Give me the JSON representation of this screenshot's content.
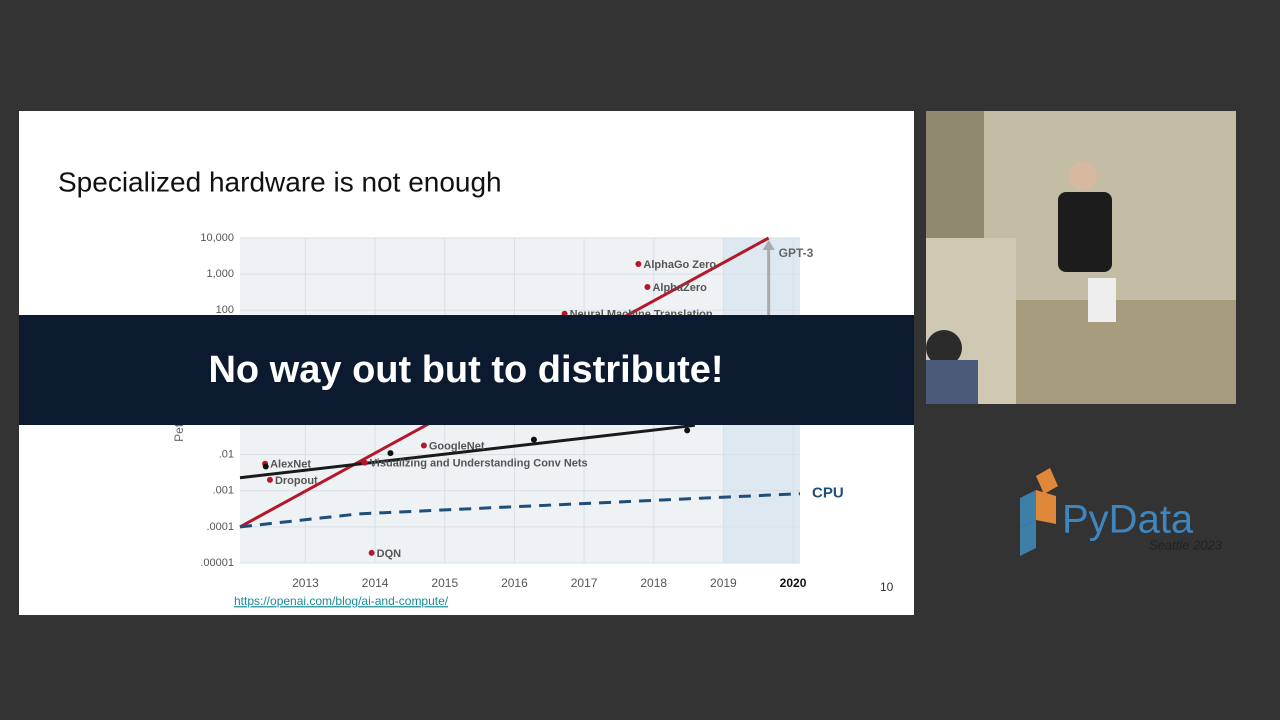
{
  "slide": {
    "title": "Specialized hardware is not enough",
    "source_url": "https://openai.com/blog/ai-and-compute/",
    "page_number": "10"
  },
  "banner": {
    "text": "No way out but to distribute!"
  },
  "logo": {
    "name": "PyData",
    "event": "Seattle 2023"
  },
  "chart_data": {
    "type": "scatter",
    "y_label": "Petaflop/s-days",
    "log_y": true,
    "grid": true,
    "xlim": [
      2012.06,
      2020.1
    ],
    "ylim": [
      1e-05,
      10000
    ],
    "xticks": [
      2013,
      2014,
      2015,
      2016,
      2017,
      2018,
      2019,
      2020
    ],
    "yticks": [
      {
        "value": 10000,
        "label": "10,000"
      },
      {
        "value": 1000,
        "label": "1,000"
      },
      100,
      {
        "value": 0.01,
        "label": ".01"
      },
      {
        "value": 0.001,
        "label": ".001"
      },
      {
        "value": 0.0001,
        "label": ".0001"
      },
      {
        "value": 1e-05,
        "label": ".00001"
      }
    ],
    "highlight_from": 2019,
    "annotations": [
      {
        "text": "GPT-3",
        "x": 2019.65,
        "y": 10000
      }
    ],
    "series": [
      {
        "type": "scatter",
        "color": "#b5172a",
        "x": [
          2017.78,
          2017.91,
          2016.72,
          2014.7,
          2012.42,
          2012.49,
          2013.85,
          2013.95
        ],
        "values": [
          1900,
          440,
          80,
          0.018,
          0.0056,
          0.002,
          0.006,
          1.9e-05
        ],
        "labels": [
          "AlphaGo Zero",
          "AlphaZero",
          "Neural Machine Translation",
          "GoogleNet",
          "AlexNet",
          "Dropout",
          "Visualizing and Understanding Conv Nets",
          "DQN"
        ]
      },
      {
        "type": "scatter",
        "color": "#111111",
        "x": [
          2012.43,
          2014.22,
          2016.28,
          2018.48
        ],
        "values": [
          0.0047,
          0.011,
          0.026,
          0.047
        ]
      },
      {
        "type": "line",
        "color": "#b5172a",
        "x": [
          2012.06,
          2019.65
        ],
        "values": [
          0.0001,
          10000
        ]
      },
      {
        "type": "line",
        "color": "#1a1a1a",
        "x": [
          2012.06,
          2018.59
        ],
        "values": [
          0.0023,
          0.065
        ]
      },
      {
        "type": "line",
        "name": "CPU",
        "color": "#1f4e79",
        "dashed": true,
        "x": [
          2012.06,
          2013.77,
          2020.1
        ],
        "values": [
          0.0001,
          0.00023,
          0.00083
        ]
      }
    ]
  }
}
